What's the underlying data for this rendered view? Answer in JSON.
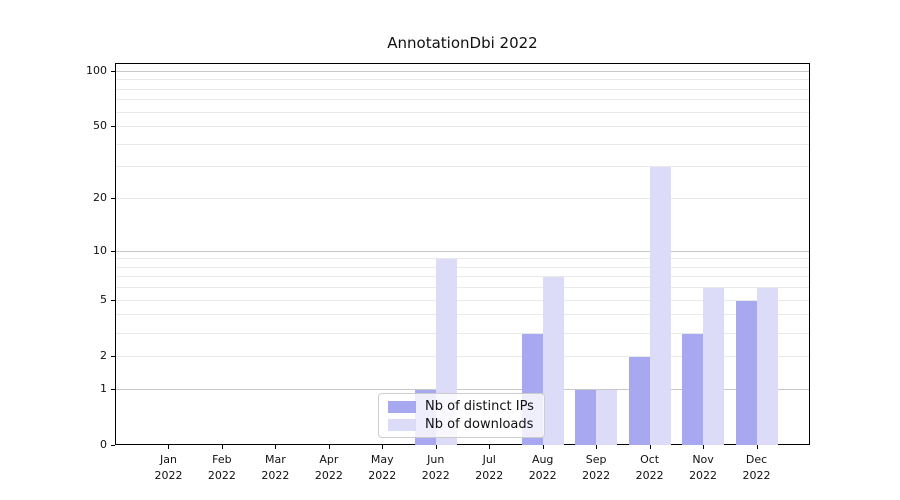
{
  "title": "AnnotationDbi 2022",
  "chart_data": {
    "type": "bar",
    "title": "AnnotationDbi 2022",
    "categories": [
      "Jan",
      "Feb",
      "Mar",
      "Apr",
      "May",
      "Jun",
      "Jul",
      "Aug",
      "Sep",
      "Oct",
      "Nov",
      "Dec"
    ],
    "year_label": "2022",
    "series": [
      {
        "name": "Nb of distinct IPs",
        "color": "#a8a8f0",
        "values": [
          0,
          0,
          0,
          0,
          0,
          1,
          0,
          3,
          1,
          2,
          3,
          5
        ]
      },
      {
        "name": "Nb of downloads",
        "color": "#dcdcf8",
        "values": [
          0,
          0,
          0,
          0,
          0,
          9,
          0,
          7,
          1,
          30,
          6,
          6
        ]
      }
    ],
    "y_axis": {
      "scale": "log1p",
      "ticks": [
        0,
        1,
        2,
        5,
        10,
        20,
        50,
        100
      ],
      "max": 110,
      "major_gridlines": [
        1,
        10,
        100
      ],
      "minor_gridlines": [
        2,
        3,
        4,
        5,
        6,
        7,
        8,
        9,
        20,
        30,
        40,
        50,
        60,
        70,
        80,
        90
      ]
    },
    "xlabel": "",
    "ylabel": "",
    "grid": true,
    "legend": {
      "position": "lower center",
      "entries": [
        "Nb of distinct IPs",
        "Nb of downloads"
      ]
    }
  }
}
